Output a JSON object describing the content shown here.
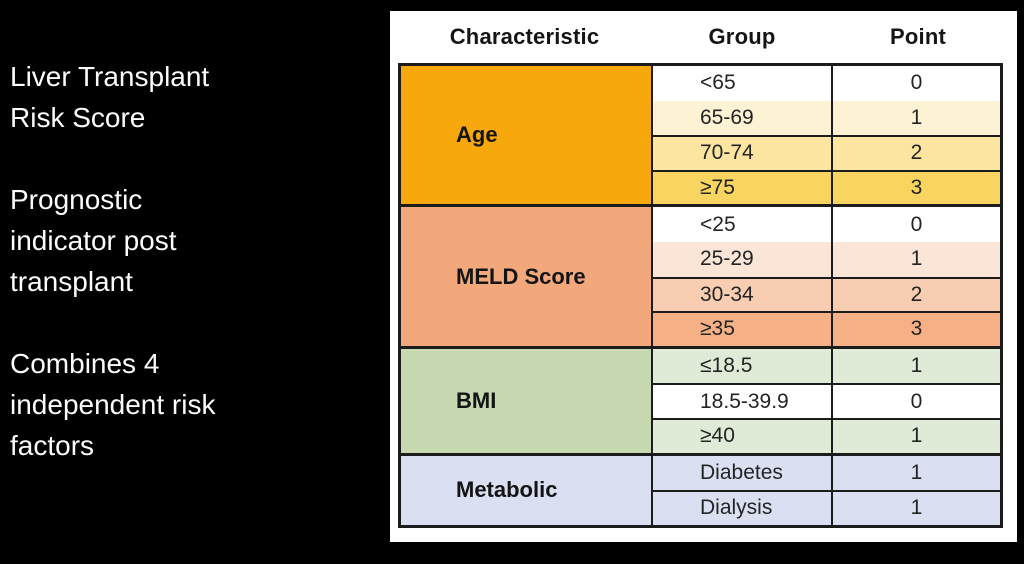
{
  "slide": {
    "background": "#000000",
    "text_color": "#FCFCFC",
    "paragraphs": [
      {
        "lines": [
          "Liver Transplant",
          "Risk Score"
        ]
      },
      {
        "lines": [
          "Prognostic",
          "indicator post",
          "transplant"
        ]
      },
      {
        "lines": [
          "Combines 4",
          "independent risk",
          "factors"
        ]
      }
    ]
  },
  "table": {
    "headers": [
      "Characteristic",
      "Group",
      "Point"
    ],
    "border_color": "#1C1C1C",
    "sections": [
      {
        "characteristic": "Age",
        "color": "#F7A80D",
        "rows": [
          {
            "group": "<65",
            "point": "0",
            "bg": "#FFFFFF",
            "divider": false
          },
          {
            "group": "65-69",
            "point": "1",
            "bg": "#FDF3D4",
            "divider": false
          },
          {
            "group": "70-74",
            "point": "2",
            "bg": "#FBE5A0",
            "divider": true
          },
          {
            "group": "≥75",
            "point": "3",
            "bg": "#F8D460",
            "divider": true
          }
        ]
      },
      {
        "characteristic": "MELD Score",
        "color": "#F3A87B",
        "rows": [
          {
            "group": "<25",
            "point": "0",
            "bg": "#FFFFFF",
            "divider": false
          },
          {
            "group": "25-29",
            "point": "1",
            "bg": "#FBE5D7",
            "divider": false
          },
          {
            "group": "30-34",
            "point": "2",
            "bg": "#F8CDB1",
            "divider": true
          },
          {
            "group": "≥35",
            "point": "3",
            "bg": "#F5B185",
            "divider": true
          }
        ]
      },
      {
        "characteristic": "BMI",
        "color": "#C6D9B0",
        "rows": [
          {
            "group": "≤18.5",
            "point": "1",
            "bg": "#E0EBD7",
            "divider": false
          },
          {
            "group": "18.5-39.9",
            "point": "0",
            "bg": "#FFFFFF",
            "divider": true
          },
          {
            "group": "≥40",
            "point": "1",
            "bg": "#E0EBD7",
            "divider": true
          }
        ]
      },
      {
        "characteristic": "Metabolic",
        "color": "#DADFF2",
        "rows": [
          {
            "group": "Diabetes",
            "point": "1",
            "bg": "#DADFF2",
            "divider": false
          },
          {
            "group": "Dialysis",
            "point": "1",
            "bg": "#DADFF2",
            "divider": true
          }
        ]
      }
    ]
  }
}
